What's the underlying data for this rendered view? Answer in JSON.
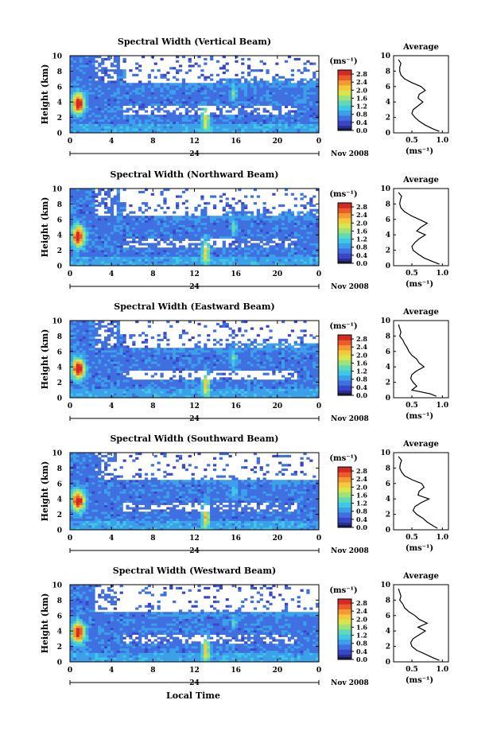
{
  "figure": {
    "xlabel": "Local Time",
    "date_label": "Nov 2008",
    "day_label": "24",
    "unit_label": "(ms⁻¹)",
    "avg_title": "Average",
    "avg_xlabel": "(ms⁻¹)",
    "ylabel": "Height (km)"
  },
  "colors": {
    "colormap": [
      "#2b2f8f",
      "#3a46c8",
      "#3f6fe0",
      "#3ba0ea",
      "#3fc8e6",
      "#5fd9b8",
      "#9ee27a",
      "#d8e64e",
      "#f5c93c",
      "#f39a32",
      "#ec5c2a",
      "#d42a26"
    ],
    "axis": "#000000",
    "background": "#ffffff"
  },
  "chart_data": [
    {
      "type": "heatmap",
      "title": "Spectral Width (Vertical Beam)",
      "x_ticks": [
        "0",
        "4",
        "8",
        "12",
        "16",
        "20",
        "0"
      ],
      "xlim": [
        0,
        24
      ],
      "y_ticks": [
        "0",
        "2",
        "4",
        "6",
        "8",
        "10"
      ],
      "ylim": [
        0,
        10
      ],
      "colorbar_ticks": [
        "0.0",
        "0.4",
        "0.8",
        "1.2",
        "1.6",
        "2.0",
        "2.4",
        "2.8"
      ],
      "clim": [
        0,
        3.0
      ],
      "average_profile": {
        "xlim": [
          0.2,
          1.1
        ],
        "x_ticks": [
          "0.5",
          "1.0"
        ],
        "y_ticks": [
          "0",
          "2",
          "4",
          "6",
          "8",
          "10"
        ],
        "height": [
          0.2,
          0.5,
          1,
          1.5,
          2,
          2.5,
          3,
          3.5,
          4,
          4.5,
          5,
          5.5,
          6,
          6.5,
          7,
          7.5,
          8,
          8.5,
          9,
          9.5
        ],
        "width": [
          0.95,
          0.85,
          0.72,
          0.62,
          0.55,
          0.5,
          0.52,
          0.6,
          0.68,
          0.6,
          0.62,
          0.72,
          0.65,
          0.5,
          0.38,
          0.32,
          0.3,
          0.3,
          0.32,
          0.28
        ]
      }
    },
    {
      "type": "heatmap",
      "title": "Spectral Width (Northward Beam)",
      "x_ticks": [
        "0",
        "4",
        "8",
        "12",
        "16",
        "20",
        "0"
      ],
      "xlim": [
        0,
        24
      ],
      "y_ticks": [
        "0",
        "2",
        "4",
        "6",
        "8",
        "10"
      ],
      "ylim": [
        0,
        10
      ],
      "colorbar_ticks": [
        "0.0",
        "0.4",
        "0.8",
        "1.2",
        "1.6",
        "2.0",
        "2.4",
        "2.8"
      ],
      "clim": [
        0,
        3.0
      ],
      "average_profile": {
        "xlim": [
          0.2,
          1.1
        ],
        "x_ticks": [
          "0.5",
          "1.0"
        ],
        "y_ticks": [
          "0",
          "2",
          "4",
          "6",
          "8",
          "10"
        ],
        "height": [
          0.2,
          0.5,
          1,
          1.5,
          2,
          2.5,
          3,
          3.5,
          4,
          4.5,
          5,
          5.5,
          6,
          6.5,
          7,
          7.5,
          8,
          8.5,
          9,
          9.5
        ],
        "width": [
          0.95,
          0.85,
          0.7,
          0.6,
          0.52,
          0.5,
          0.55,
          0.62,
          0.72,
          0.58,
          0.65,
          0.75,
          0.62,
          0.48,
          0.38,
          0.32,
          0.3,
          0.31,
          0.33,
          0.28
        ]
      }
    },
    {
      "type": "heatmap",
      "title": "Spectral Width (Eastward Beam)",
      "x_ticks": [
        "0",
        "4",
        "8",
        "12",
        "16",
        "20",
        "0"
      ],
      "xlim": [
        0,
        24
      ],
      "y_ticks": [
        "0",
        "2",
        "4",
        "6",
        "8",
        "10"
      ],
      "ylim": [
        0,
        10
      ],
      "colorbar_ticks": [
        "0.0",
        "0.4",
        "0.8",
        "1.2",
        "1.6",
        "2.0",
        "2.4",
        "2.8"
      ],
      "clim": [
        0,
        3.0
      ],
      "average_profile": {
        "xlim": [
          0.2,
          1.1
        ],
        "x_ticks": [
          "0.5",
          "1.0"
        ],
        "y_ticks": [
          "0",
          "2",
          "4",
          "6",
          "8",
          "10"
        ],
        "height": [
          0.2,
          0.5,
          1,
          1.5,
          2,
          2.5,
          3,
          3.5,
          4,
          4.5,
          5,
          5.5,
          6,
          6.5,
          7,
          7.5,
          8,
          8.5,
          9,
          9.5
        ],
        "width": [
          0.9,
          0.8,
          0.5,
          0.58,
          0.52,
          0.48,
          0.5,
          0.58,
          0.7,
          0.62,
          0.58,
          0.5,
          0.45,
          0.42,
          0.38,
          0.35,
          0.3,
          0.32,
          0.3,
          0.28
        ]
      }
    },
    {
      "type": "heatmap",
      "title": "Spectral Width (Southward Beam)",
      "x_ticks": [
        "0",
        "4",
        "8",
        "12",
        "16",
        "20",
        "0"
      ],
      "xlim": [
        0,
        24
      ],
      "y_ticks": [
        "0",
        "2",
        "4",
        "6",
        "8",
        "10"
      ],
      "ylim": [
        0,
        10
      ],
      "colorbar_ticks": [
        "0.0",
        "0.4",
        "0.8",
        "1.2",
        "1.6",
        "2.0",
        "2.4",
        "2.8"
      ],
      "clim": [
        0,
        3.0
      ],
      "average_profile": {
        "xlim": [
          0.2,
          1.1
        ],
        "x_ticks": [
          "0.5",
          "1.0"
        ],
        "y_ticks": [
          "0",
          "2",
          "4",
          "6",
          "8",
          "10"
        ],
        "height": [
          0.2,
          0.5,
          1,
          1.5,
          2,
          2.5,
          3,
          3.5,
          4,
          4.5,
          5,
          5.5,
          6,
          6.5,
          7,
          7.5,
          8,
          8.5,
          9,
          9.5
        ],
        "width": [
          0.92,
          0.85,
          0.75,
          0.68,
          0.58,
          0.52,
          0.55,
          0.65,
          0.78,
          0.6,
          0.62,
          0.7,
          0.66,
          0.5,
          0.38,
          0.33,
          0.3,
          0.31,
          0.33,
          0.28
        ]
      }
    },
    {
      "type": "heatmap",
      "title": "Spectral Width (Westward Beam)",
      "x_ticks": [
        "0",
        "4",
        "8",
        "12",
        "16",
        "20",
        "0"
      ],
      "xlim": [
        0,
        24
      ],
      "y_ticks": [
        "0",
        "2",
        "4",
        "6",
        "8",
        "10"
      ],
      "ylim": [
        0,
        10
      ],
      "colorbar_ticks": [
        "0.0",
        "0.4",
        "0.8",
        "1.2",
        "1.6",
        "2.0",
        "2.4",
        "2.8"
      ],
      "clim": [
        0,
        3.0
      ],
      "average_profile": {
        "xlim": [
          0.2,
          1.1
        ],
        "x_ticks": [
          "0.5",
          "1.0"
        ],
        "y_ticks": [
          "0",
          "2",
          "4",
          "6",
          "8",
          "10"
        ],
        "height": [
          0.2,
          0.5,
          1,
          1.5,
          2,
          2.5,
          3,
          3.5,
          4,
          4.5,
          5,
          5.5,
          6,
          6.5,
          7,
          7.5,
          8,
          8.5,
          9,
          9.5
        ],
        "width": [
          0.95,
          0.85,
          0.72,
          0.58,
          0.5,
          0.48,
          0.52,
          0.62,
          0.72,
          0.6,
          0.75,
          0.62,
          0.55,
          0.45,
          0.38,
          0.35,
          0.3,
          0.32,
          0.3,
          0.28
        ]
      }
    }
  ]
}
